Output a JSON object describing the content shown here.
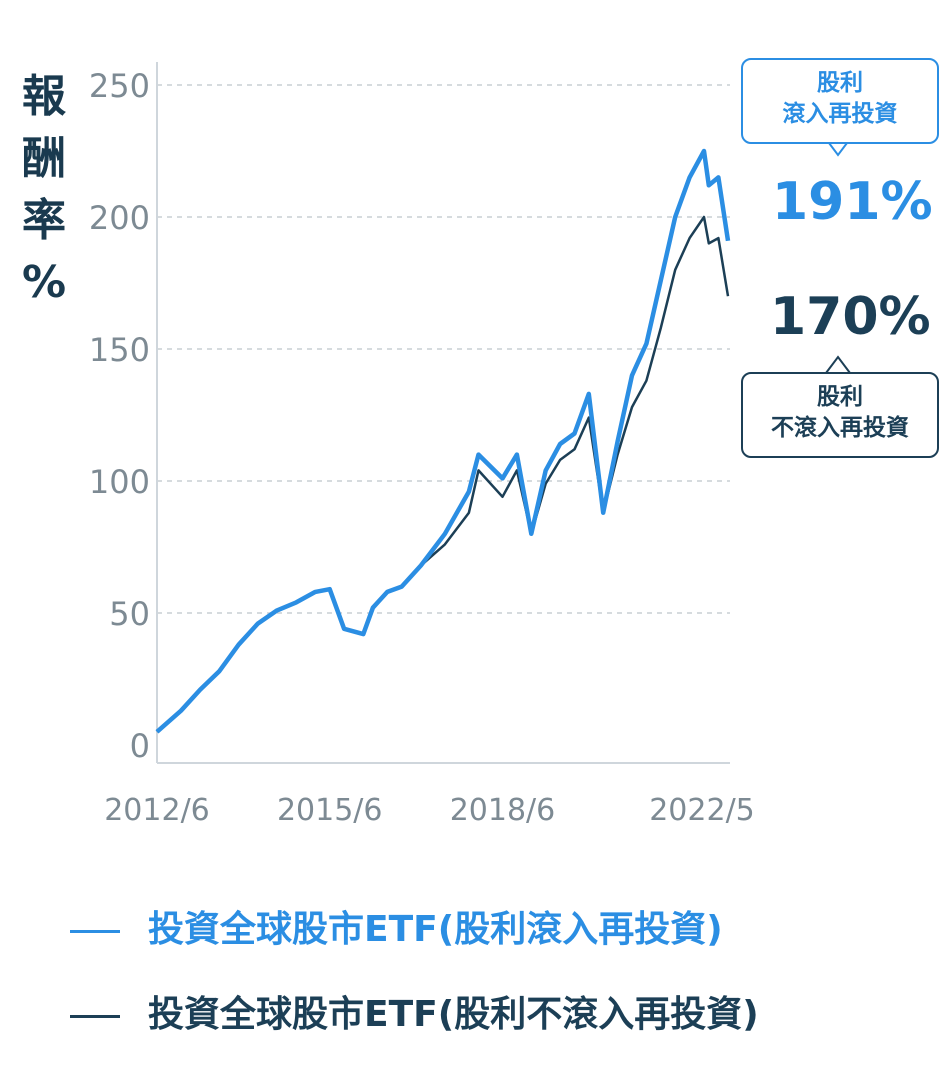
{
  "chart_data": {
    "type": "line",
    "ylabel": [
      "報",
      "酬",
      "率",
      "%"
    ],
    "ylim": [
      0,
      250
    ],
    "yticks": [
      "0",
      "50",
      "100",
      "150",
      "200",
      "250"
    ],
    "xticks": [
      "2012/6",
      "2015/6",
      "2018/6",
      "2022/5"
    ],
    "grid": "horizontal dashed",
    "x": [
      "2012/6",
      "2012/11",
      "2013/3",
      "2013/7",
      "2013/11",
      "2014/3",
      "2014/7",
      "2014/11",
      "2015/3",
      "2015/6",
      "2015/9",
      "2016/1",
      "2016/3",
      "2016/6",
      "2016/9",
      "2017/1",
      "2017/6",
      "2017/11",
      "2018/1",
      "2018/6",
      "2018/9",
      "2018/12",
      "2019/3",
      "2019/6",
      "2019/9",
      "2019/12",
      "2020/3",
      "2020/6",
      "2020/9",
      "2020/12",
      "2021/3",
      "2021/6",
      "2021/9",
      "2021/12",
      "2022/1",
      "2022/3",
      "2022/5"
    ],
    "series": [
      {
        "name": "投資全球股市ETF(股利滾入再投資)",
        "color": "#2b8ee3",
        "values": [
          5,
          13,
          21,
          28,
          38,
          46,
          51,
          54,
          58,
          59,
          44,
          42,
          52,
          58,
          60,
          68,
          80,
          96,
          110,
          101,
          110,
          80,
          104,
          114,
          118,
          133,
          88,
          115,
          140,
          152,
          176,
          200,
          215,
          225,
          212,
          215,
          191
        ]
      },
      {
        "name": "投資全球股市ETF(股利不滾入再投資)",
        "color": "#1c3f56",
        "values": [
          5,
          13,
          21,
          28,
          38,
          46,
          51,
          54,
          58,
          59,
          44,
          42,
          52,
          58,
          60,
          68,
          76,
          88,
          104,
          94,
          104,
          80,
          99,
          108,
          112,
          124,
          88,
          110,
          128,
          138,
          158,
          180,
          192,
          200,
          190,
          192,
          170
        ]
      }
    ],
    "annotations": {
      "reinvest_label": [
        "股利",
        "滾入再投資"
      ],
      "reinvest_value": "191%",
      "no_reinvest_label": [
        "股利",
        "不滾入再投資"
      ],
      "no_reinvest_value": "170%"
    }
  }
}
